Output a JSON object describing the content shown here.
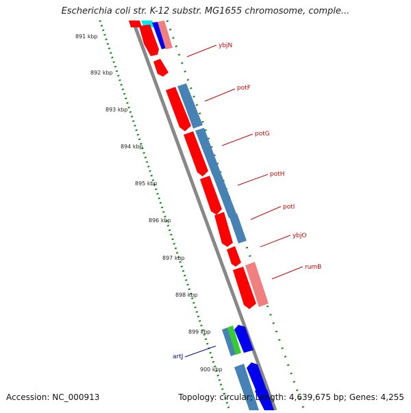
{
  "title": "Escherichia coli str. K-12 substr. MG1655 chromosome, comple...",
  "footer": {
    "accession": "Accession: NC_000913",
    "summary": "Topology: circular; Length: 4,639,675 bp; Genes: 4,255"
  },
  "ticks": [
    "891 kbp",
    "892 kbp",
    "893 kbp",
    "894 kbp",
    "895 kbp",
    "896 kbp",
    "897 kbp",
    "898 kbp",
    "899 kbp",
    "900 kbp"
  ],
  "genes": [
    {
      "name": "ybjN",
      "color": "#cc0000"
    },
    {
      "name": "potF",
      "color": "#cc0000"
    },
    {
      "name": "potG",
      "color": "#cc0000"
    },
    {
      "name": "potH",
      "color": "#cc0000"
    },
    {
      "name": "potI",
      "color": "#cc0000"
    },
    {
      "name": "ybjO",
      "color": "#cc0000"
    },
    {
      "name": "rumB",
      "color": "#cc0000"
    },
    {
      "name": "artJ",
      "color": "#000099"
    }
  ],
  "colors": {
    "forward_cds": "#ff0000",
    "reverse_cds": "#0000ee",
    "cog_steel": "#4682b4",
    "cog_pink": "#f08080",
    "cog_green": "#33cc33",
    "cog_cyan": "#00ffff",
    "backbone": "#888888",
    "tick_green": "#118811"
  }
}
